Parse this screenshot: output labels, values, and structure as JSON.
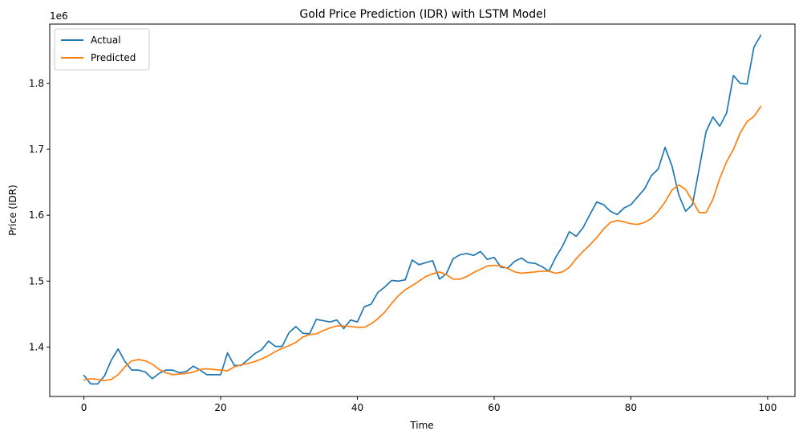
{
  "chart_data": {
    "type": "line",
    "title": "Gold Price Prediction (IDR) with LSTM Model",
    "xlabel": "Time",
    "ylabel": "Price (IDR)",
    "offset_text": "1e6",
    "xlim": [
      -5,
      104
    ],
    "ylim": [
      1325000,
      1890000
    ],
    "xticks": [
      0,
      20,
      40,
      60,
      80,
      100
    ],
    "xtick_labels": [
      "0",
      "20",
      "40",
      "60",
      "80",
      "100"
    ],
    "yticks": [
      1400000,
      1500000,
      1600000,
      1700000,
      1800000
    ],
    "ytick_labels": [
      "1.4",
      "1.5",
      "1.6",
      "1.7",
      "1.8"
    ],
    "grid": false,
    "legend_position": "top-left",
    "series": [
      {
        "name": "Actual",
        "color": "#1f77b4",
        "values": [
          1357000,
          1344000,
          1344000,
          1356000,
          1380000,
          1397000,
          1378000,
          1365000,
          1365000,
          1362000,
          1352000,
          1360000,
          1365000,
          1365000,
          1361000,
          1363000,
          1371000,
          1365000,
          1358000,
          1358000,
          1358000,
          1391000,
          1372000,
          1372000,
          1381000,
          1390000,
          1396000,
          1409000,
          1401000,
          1401000,
          1422000,
          1431000,
          1421000,
          1420000,
          1442000,
          1440000,
          1438000,
          1441000,
          1428000,
          1441000,
          1438000,
          1461000,
          1465000,
          1483000,
          1491000,
          1501000,
          1500000,
          1502000,
          1532000,
          1525000,
          1528000,
          1531000,
          1503000,
          1511000,
          1534000,
          1540000,
          1542000,
          1539000,
          1545000,
          1533000,
          1536000,
          1521000,
          1520000,
          1530000,
          1535000,
          1528000,
          1527000,
          1522000,
          1515000,
          1536000,
          1553000,
          1575000,
          1568000,
          1581000,
          1601000,
          1620000,
          1616000,
          1606000,
          1601000,
          1611000,
          1616000,
          1628000,
          1640000,
          1660000,
          1670000,
          1703000,
          1675000,
          1631000,
          1606000,
          1616000,
          1671000,
          1727000,
          1749000,
          1735000,
          1755000,
          1812000,
          1800000,
          1799000,
          1855000,
          1873000
        ]
      },
      {
        "name": "Predicted",
        "color": "#ff7f0e",
        "values": [
          1350000,
          1352000,
          1351000,
          1349000,
          1351000,
          1358000,
          1370000,
          1379000,
          1381000,
          1379000,
          1374000,
          1366000,
          1361000,
          1358000,
          1359000,
          1360000,
          1362000,
          1366000,
          1367000,
          1366000,
          1365000,
          1364000,
          1370000,
          1373000,
          1375000,
          1378000,
          1382000,
          1387000,
          1393000,
          1398000,
          1402000,
          1407000,
          1415000,
          1419000,
          1420000,
          1425000,
          1429000,
          1432000,
          1432000,
          1431000,
          1430000,
          1430000,
          1435000,
          1443000,
          1453000,
          1466000,
          1478000,
          1487000,
          1493000,
          1500000,
          1507000,
          1511000,
          1514000,
          1510000,
          1503000,
          1503000,
          1507000,
          1513000,
          1518000,
          1523000,
          1524000,
          1523000,
          1519000,
          1514000,
          1512000,
          1513000,
          1514000,
          1515000,
          1515000,
          1512000,
          1514000,
          1521000,
          1534000,
          1545000,
          1555000,
          1566000,
          1579000,
          1589000,
          1592000,
          1590000,
          1587000,
          1586000,
          1589000,
          1595000,
          1606000,
          1620000,
          1638000,
          1646000,
          1639000,
          1622000,
          1604000,
          1604000,
          1624000,
          1656000,
          1681000,
          1700000,
          1725000,
          1742000,
          1750000,
          1765000
        ]
      }
    ]
  }
}
